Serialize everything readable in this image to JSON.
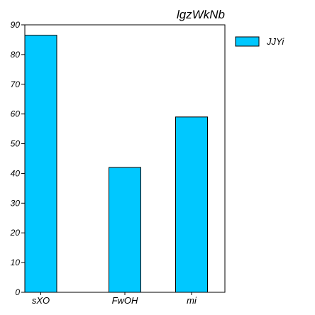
{
  "chart_data": {
    "type": "bar",
    "title": "lgzWkNb",
    "xlabel": "",
    "ylabel": "",
    "categories": [
      "sXO",
      "FwOH",
      "mi"
    ],
    "series": [
      {
        "name": "JJYi",
        "values": [
          86.5,
          42,
          59
        ],
        "color": "#00c8ff"
      }
    ],
    "ylim": [
      0,
      90
    ],
    "yticks": [
      0,
      10,
      20,
      30,
      40,
      50,
      60,
      70,
      80,
      90
    ],
    "grid": false,
    "legend_position": "right"
  }
}
